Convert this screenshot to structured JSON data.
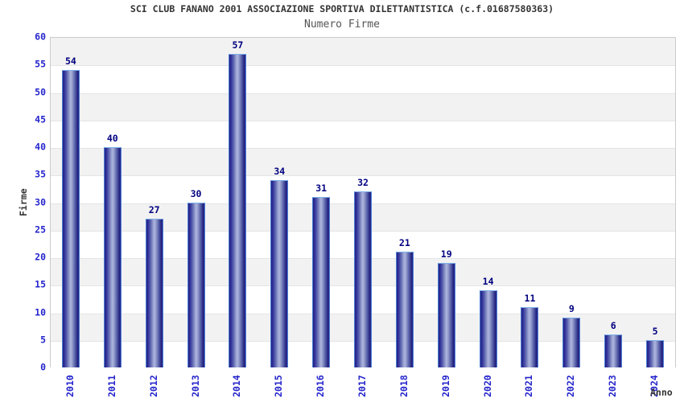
{
  "page": {
    "title": "SCI CLUB FANANO 2001 ASSOCIAZIONE SPORTIVA DILETTANTISTICA (c.f.01687580363)",
    "subtitle": "Numero Firme"
  },
  "chart_data": {
    "type": "bar",
    "title": "SCI CLUB FANANO 2001 ASSOCIAZIONE SPORTIVA DILETTANTISTICA (c.f.01687580363)",
    "subtitle": "Numero Firme",
    "categories": [
      "2010",
      "2011",
      "2012",
      "2013",
      "2014",
      "2015",
      "2016",
      "2017",
      "2018",
      "2019",
      "2020",
      "2021",
      "2022",
      "2023",
      "2024"
    ],
    "values": [
      54,
      40,
      27,
      30,
      57,
      34,
      31,
      32,
      21,
      19,
      14,
      11,
      9,
      6,
      5
    ],
    "xlabel": "Anno",
    "ylabel": "Firme",
    "ylim": [
      0,
      60
    ],
    "ytick_step": 5,
    "grid": "alternating-horizontal-bands",
    "legend_position": "none",
    "bar_value_labels": true
  },
  "colors": {
    "title": "#333333",
    "subtitle": "#555555",
    "tick_label": "#2424CC",
    "value_label": "#000080",
    "axis_title": "#333333",
    "plot_border": "#CBCBCB",
    "band_gray": "#F2F2F2",
    "band_white": "#FFFFFF",
    "band_divider": "#E4E4E4",
    "bar_outline": "#4D7FD6",
    "bar_outline_top": "#7FB2E8",
    "bar_dark": "#23237E",
    "bar_mid": "#5A62AE",
    "bar_light": "#AEB6DF"
  }
}
